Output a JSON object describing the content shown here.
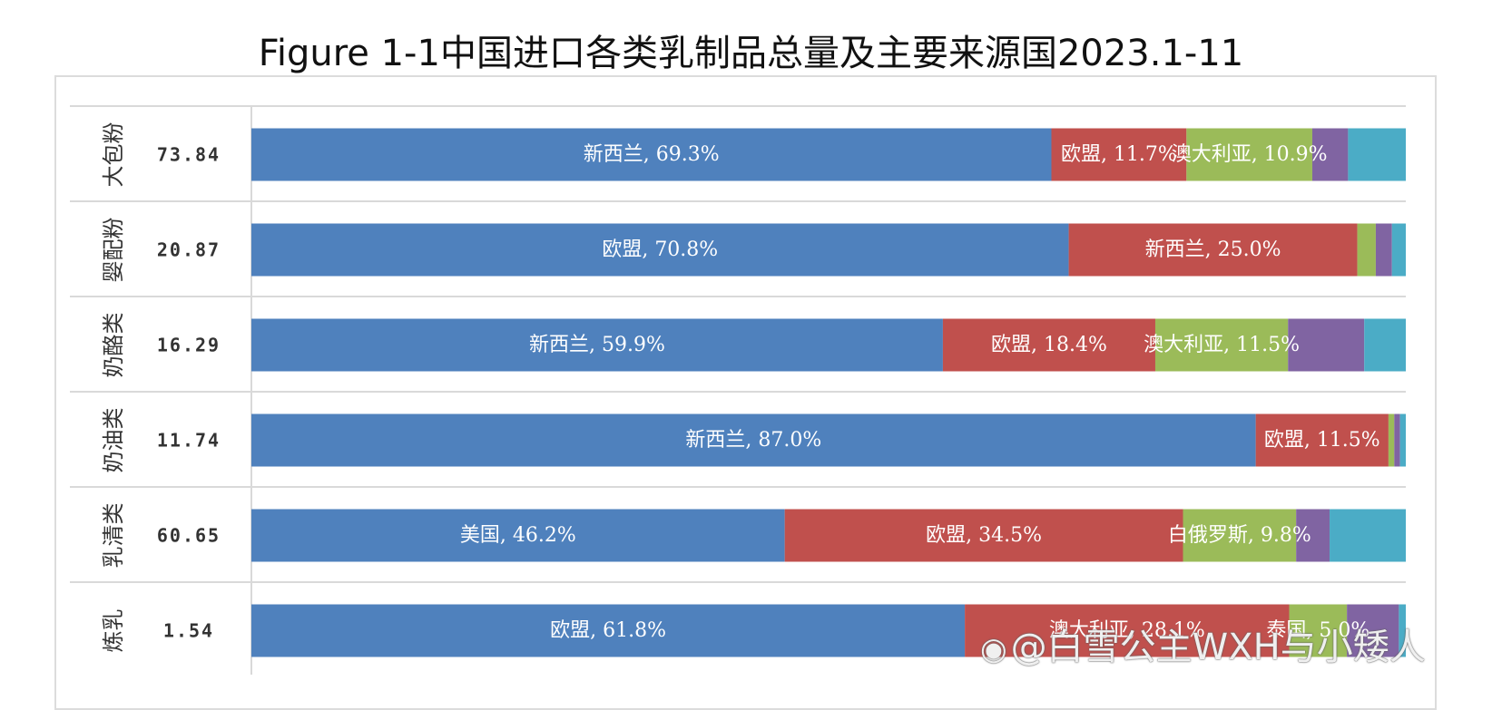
{
  "title": "Figure 1-1中国进口各类乳制品总量及主要来源国2023.1-11",
  "watermark": "@白雪公主WXH与小矮人",
  "colors": [
    "#4f81bd",
    "#c0504d",
    "#9bbb59",
    "#8064a2",
    "#4bacc6"
  ],
  "chart_data": {
    "type": "bar",
    "orientation": "horizontal",
    "stacked": "percent",
    "title": "Figure 1-1中国进口各类乳制品总量及主要来源国2023.1-11",
    "categories": [
      "大包粉",
      "婴配粉",
      "奶酪类",
      "奶油类",
      "乳清类",
      "炼乳"
    ],
    "totals": [
      "73.84",
      "20.87",
      "16.29",
      "11.74",
      "60.65",
      "1.54"
    ],
    "rows": [
      {
        "segments": [
          {
            "country": "新西兰",
            "value": 69.3,
            "label": "新西兰, 69.3%"
          },
          {
            "country": "欧盟",
            "value": 11.7,
            "label": "欧盟, 11.7%"
          },
          {
            "country": "澳大利亚",
            "value": 10.9,
            "label": "澳大利亚, 10.9%"
          },
          {
            "value": 3.1
          },
          {
            "value": 5.0
          }
        ]
      },
      {
        "segments": [
          {
            "country": "欧盟",
            "value": 70.8,
            "label": "欧盟, 70.8%"
          },
          {
            "country": "新西兰",
            "value": 25.0,
            "label": "新西兰, 25.0%"
          },
          {
            "value": 1.6
          },
          {
            "value": 1.4
          },
          {
            "value": 1.2
          }
        ]
      },
      {
        "segments": [
          {
            "country": "新西兰",
            "value": 59.9,
            "label": "新西兰, 59.9%"
          },
          {
            "country": "欧盟",
            "value": 18.4,
            "label": "欧盟, 18.4%"
          },
          {
            "country": "澳大利亚",
            "value": 11.5,
            "label": "澳大利亚, 11.5%"
          },
          {
            "value": 6.6
          },
          {
            "value": 3.6
          }
        ]
      },
      {
        "segments": [
          {
            "country": "新西兰",
            "value": 87.0,
            "label": "新西兰, 87.0%"
          },
          {
            "country": "欧盟",
            "value": 11.5,
            "label": "欧盟, 11.5%"
          },
          {
            "value": 0.5
          },
          {
            "value": 0.5
          },
          {
            "value": 0.5
          }
        ]
      },
      {
        "segments": [
          {
            "country": "美国",
            "value": 46.2,
            "label": "美国, 46.2%"
          },
          {
            "country": "欧盟",
            "value": 34.5,
            "label": "欧盟, 34.5%"
          },
          {
            "country": "白俄罗斯",
            "value": 9.8,
            "label": "白俄罗斯, 9.8%"
          },
          {
            "value": 2.9
          },
          {
            "value": 6.6
          }
        ]
      },
      {
        "segments": [
          {
            "country": "欧盟",
            "value": 61.8,
            "label": "欧盟, 61.8%"
          },
          {
            "country": "澳大利亚",
            "value": 28.1,
            "label": "澳大利亚, 28.1%"
          },
          {
            "country": "泰国",
            "value": 5.0,
            "label": "泰国, 5.0%"
          },
          {
            "value": 4.5
          },
          {
            "value": 0.6
          }
        ]
      }
    ],
    "xlim": [
      0,
      100
    ],
    "grid": true,
    "legend": "none"
  }
}
